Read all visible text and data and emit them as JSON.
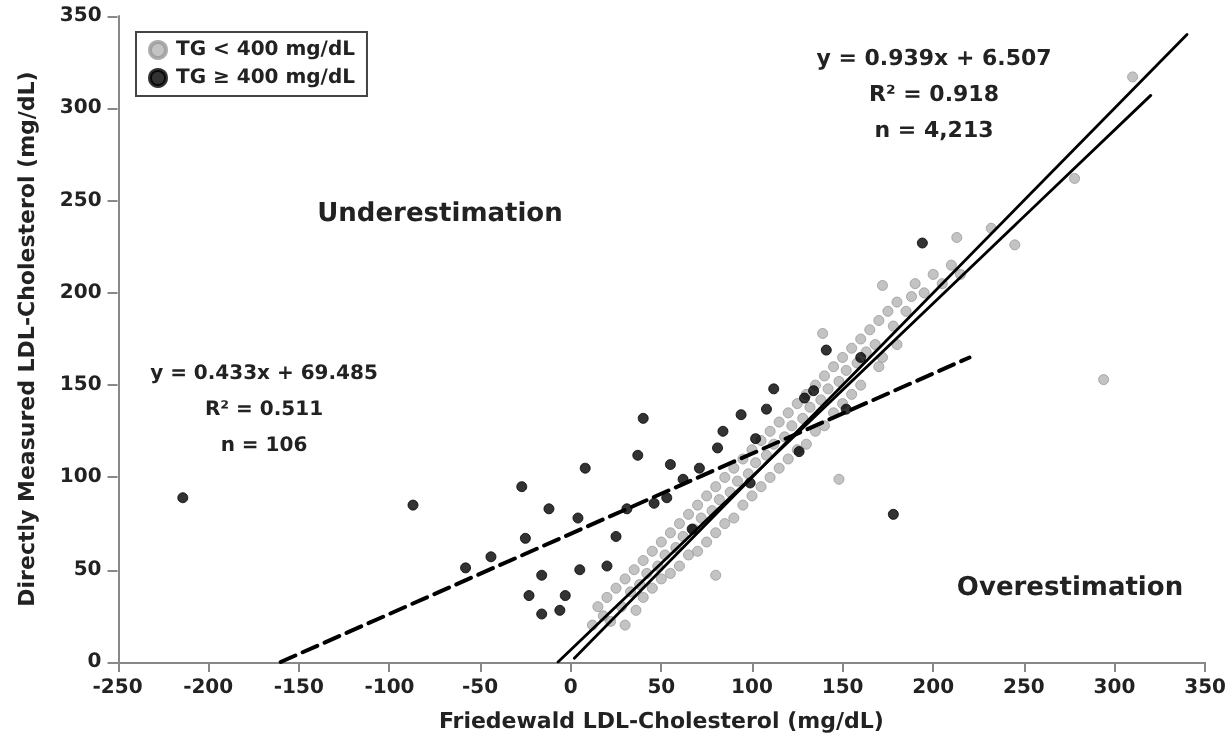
{
  "chart_data": {
    "type": "scatter",
    "xlabel": "Friedewald LDL-Cholesterol (mg/dL)",
    "ylabel": "Directly Measured LDL-Cholesterol (mg/dL)",
    "xlim": [
      -250,
      350
    ],
    "xticks": [
      -250,
      -200,
      -150,
      -100,
      -50,
      0,
      50,
      100,
      150,
      200,
      250,
      300,
      350
    ],
    "ylim": [
      0,
      350
    ],
    "yticks": [
      0,
      50,
      100,
      150,
      200,
      250,
      300,
      350
    ],
    "grid": false,
    "legend": "top left",
    "marker": "circle",
    "annotations": [
      "Underestimation",
      "Overestimation",
      "y = 0.939x + 6.507\nR² = 0.918\nn = 4,213",
      "y = 0.433x + 69.485\nR² = 0.511\nn = 106"
    ],
    "series": [
      {
        "name": "TG < 400 mg/dL",
        "color": "#b4b4b4",
        "x": [
          12,
          15,
          18,
          20,
          22,
          25,
          28,
          30,
          30,
          33,
          35,
          36,
          38,
          40,
          40,
          42,
          45,
          45,
          48,
          50,
          50,
          52,
          55,
          55,
          58,
          60,
          60,
          62,
          65,
          65,
          68,
          70,
          70,
          72,
          75,
          75,
          78,
          80,
          80,
          82,
          85,
          85,
          88,
          90,
          90,
          92,
          95,
          95,
          98,
          100,
          100,
          102,
          105,
          105,
          108,
          110,
          110,
          112,
          115,
          115,
          118,
          120,
          120,
          122,
          125,
          125,
          128,
          130,
          130,
          132,
          135,
          135,
          138,
          140,
          140,
          142,
          145,
          145,
          148,
          150,
          150,
          152,
          155,
          155,
          158,
          160,
          160,
          163,
          165,
          168,
          170,
          172,
          175,
          178,
          180,
          185,
          188,
          190,
          195,
          200,
          205,
          210,
          215,
          180,
          170,
          139,
          148,
          80,
          172,
          213,
          232,
          245,
          278,
          294,
          310
        ],
        "values": [
          20,
          30,
          25,
          35,
          22,
          40,
          30,
          45,
          20,
          38,
          50,
          28,
          42,
          55,
          35,
          48,
          60,
          40,
          52,
          65,
          45,
          58,
          70,
          48,
          62,
          75,
          52,
          68,
          80,
          58,
          72,
          85,
          60,
          78,
          90,
          65,
          82,
          95,
          70,
          88,
          100,
          75,
          92,
          105,
          78,
          98,
          110,
          85,
          102,
          115,
          90,
          108,
          120,
          95,
          112,
          125,
          100,
          118,
          130,
          105,
          122,
          135,
          110,
          128,
          140,
          115,
          132,
          145,
          118,
          138,
          150,
          125,
          142,
          155,
          128,
          148,
          160,
          135,
          152,
          165,
          140,
          158,
          170,
          145,
          162,
          175,
          150,
          168,
          180,
          172,
          185,
          165,
          190,
          182,
          195,
          190,
          198,
          205,
          200,
          210,
          205,
          215,
          210,
          172,
          160,
          178,
          99,
          47,
          204,
          230,
          235,
          226,
          262,
          153,
          317
        ]
      },
      {
        "name": "TG ≥ 400 mg/dL",
        "color": "#000000",
        "x": [
          -214,
          -87,
          -27,
          8,
          40,
          37,
          -58,
          -44,
          -23,
          -16,
          -6,
          -25,
          -12,
          4,
          5,
          -3,
          -16,
          194,
          178,
          112,
          141,
          160,
          152,
          126,
          129,
          84,
          94,
          102,
          55,
          71,
          46,
          67,
          99,
          81,
          31,
          25,
          20,
          62,
          53,
          108,
          134
        ],
        "values": [
          89,
          85,
          95,
          105,
          132,
          112,
          51,
          57,
          36,
          26,
          28,
          67,
          83,
          78,
          50,
          36,
          47,
          227,
          80,
          148,
          169,
          165,
          137,
          114,
          143,
          125,
          134,
          121,
          107,
          105,
          86,
          72,
          97,
          116,
          83,
          68,
          52,
          99,
          89,
          137,
          147
        ]
      },
      {
        "type": "line",
        "color": "#000000",
        "line_style": "solid",
        "marker": "none",
        "x": [
          -7,
          320
        ],
        "values": [
          0,
          307
        ]
      },
      {
        "type": "line",
        "color": "#000000",
        "line_style": "dashed",
        "marker": "none",
        "x": [
          -160,
          220
        ],
        "values": [
          0,
          165
        ]
      },
      {
        "type": "line",
        "color": "#000000",
        "line_style": "solid",
        "marker": "none",
        "x": [
          2,
          340
        ],
        "values": [
          2,
          340
        ]
      }
    ]
  }
}
